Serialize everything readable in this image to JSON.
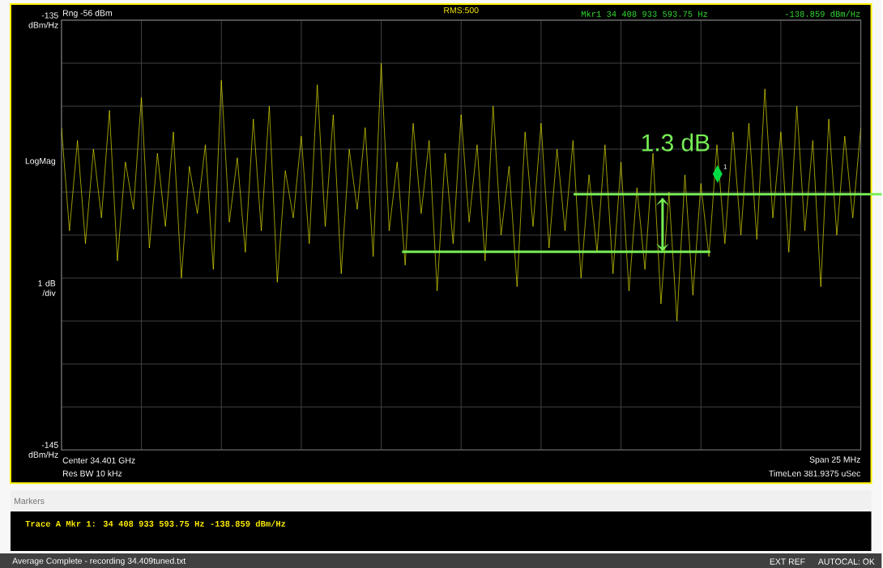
{
  "chart_data": {
    "type": "line",
    "title": "RMS:500",
    "categories": [
      null,
      null,
      null,
      null,
      null,
      null,
      null,
      null,
      null,
      null,
      null,
      null,
      null,
      null,
      null,
      null,
      null,
      null,
      null,
      null,
      null,
      null,
      null,
      null,
      null,
      null,
      null,
      null,
      null,
      null,
      null,
      null,
      null,
      null,
      null,
      null,
      null,
      null,
      null,
      null,
      null,
      null,
      null,
      null,
      null,
      null,
      null,
      null,
      null,
      null,
      null,
      null,
      null,
      null,
      null,
      null,
      null,
      null,
      null,
      null,
      null,
      null,
      null,
      null,
      null,
      null,
      null,
      null,
      null,
      null,
      null,
      null,
      null,
      null,
      null,
      null,
      null,
      null,
      null,
      null,
      null,
      null,
      null,
      null,
      null,
      null,
      null,
      null,
      null,
      null,
      null,
      null,
      null,
      null,
      null,
      null,
      null,
      null,
      null,
      null,
      null
    ],
    "ylim": [
      -145,
      -135
    ],
    "yticks": [
      {
        "value": -145,
        "label": "-145 dBm/Hz"
      },
      {
        "value": -144,
        "label": null
      },
      {
        "value": -143,
        "label": null
      },
      {
        "value": -142,
        "label": null
      },
      {
        "value": -141,
        "label": null
      },
      {
        "value": -140,
        "label": null
      },
      {
        "value": -139,
        "label": null
      },
      {
        "value": -138,
        "label": null
      },
      {
        "value": -137,
        "label": null
      },
      {
        "value": -136,
        "label": null
      },
      {
        "value": -135,
        "label": "-135 dBm/Hz"
      }
    ],
    "grid": true,
    "ref_lines": [
      {
        "axis": "y",
        "value": -139.05,
        "color": "#77ee55"
      },
      {
        "axis": "y",
        "value": -140.39,
        "color": "#77ee55"
      }
    ],
    "series": [
      {
        "color": "#ffff00",
        "values": [
          -137.5,
          -139.9,
          -137.8,
          -140.2,
          -138.0,
          -139.6,
          -137.1,
          -140.6,
          -138.3,
          -139.4,
          -136.8,
          -140.3,
          -138.1,
          -139.8,
          -137.6,
          -141.0,
          -138.4,
          -139.5,
          -137.9,
          -140.8,
          -136.4,
          -139.7,
          -138.2,
          -140.4,
          -137.3,
          -139.9,
          -137.0,
          -141.1,
          -138.5,
          -139.6,
          -137.7,
          -140.2,
          -136.5,
          -139.8,
          -137.2,
          -140.9,
          -138.0,
          -139.4,
          -137.5,
          -140.5,
          -136.0,
          -139.9,
          -138.3,
          -140.7,
          -137.4,
          -139.5,
          -137.8,
          -141.3,
          -138.1,
          -140.2,
          -137.2,
          -139.7,
          -137.9,
          -140.6,
          -137.0,
          -140.0,
          -138.4,
          -141.2,
          -137.6,
          -139.8,
          -137.4,
          -140.3,
          -138.0,
          -139.9,
          -137.8,
          -141.0,
          -138.6,
          -140.4,
          -137.9,
          -140.9,
          -138.3,
          -141.3,
          -138.9,
          -140.8,
          -138.1,
          -141.6,
          -139.0,
          -142.0,
          -138.6,
          -141.4,
          -138.8,
          -140.5,
          -137.9,
          -140.2,
          -137.6,
          -140.0,
          -137.4,
          -140.1,
          -136.6,
          -139.6,
          -137.6,
          -140.4,
          -137.0,
          -139.9,
          -137.8,
          -141.2,
          -137.3,
          -140.0,
          -137.7,
          -139.6,
          -137.5
        ]
      }
    ],
    "annotations": [
      "Rng -56 dBm",
      "Mkr1 34 408 933 593.75 Hz",
      "-138.859 dBm/Hz",
      "1.3 dB",
      "1",
      "Center 34.401 GHz",
      "Res BW 10 kHz",
      "Span 25 MHz",
      "TimeLen 381.9375 uSec",
      "Markers",
      "Trace A Mkr 1: 34 408 933 593.75 Hz -138.859 dBm/Hz",
      "Average Complete - recording 34.409tuned.txt",
      "EXT REF",
      "AUTOCAL: OK",
      "LogMag"
    ],
    "ylabel": "1 dB /div"
  }
}
